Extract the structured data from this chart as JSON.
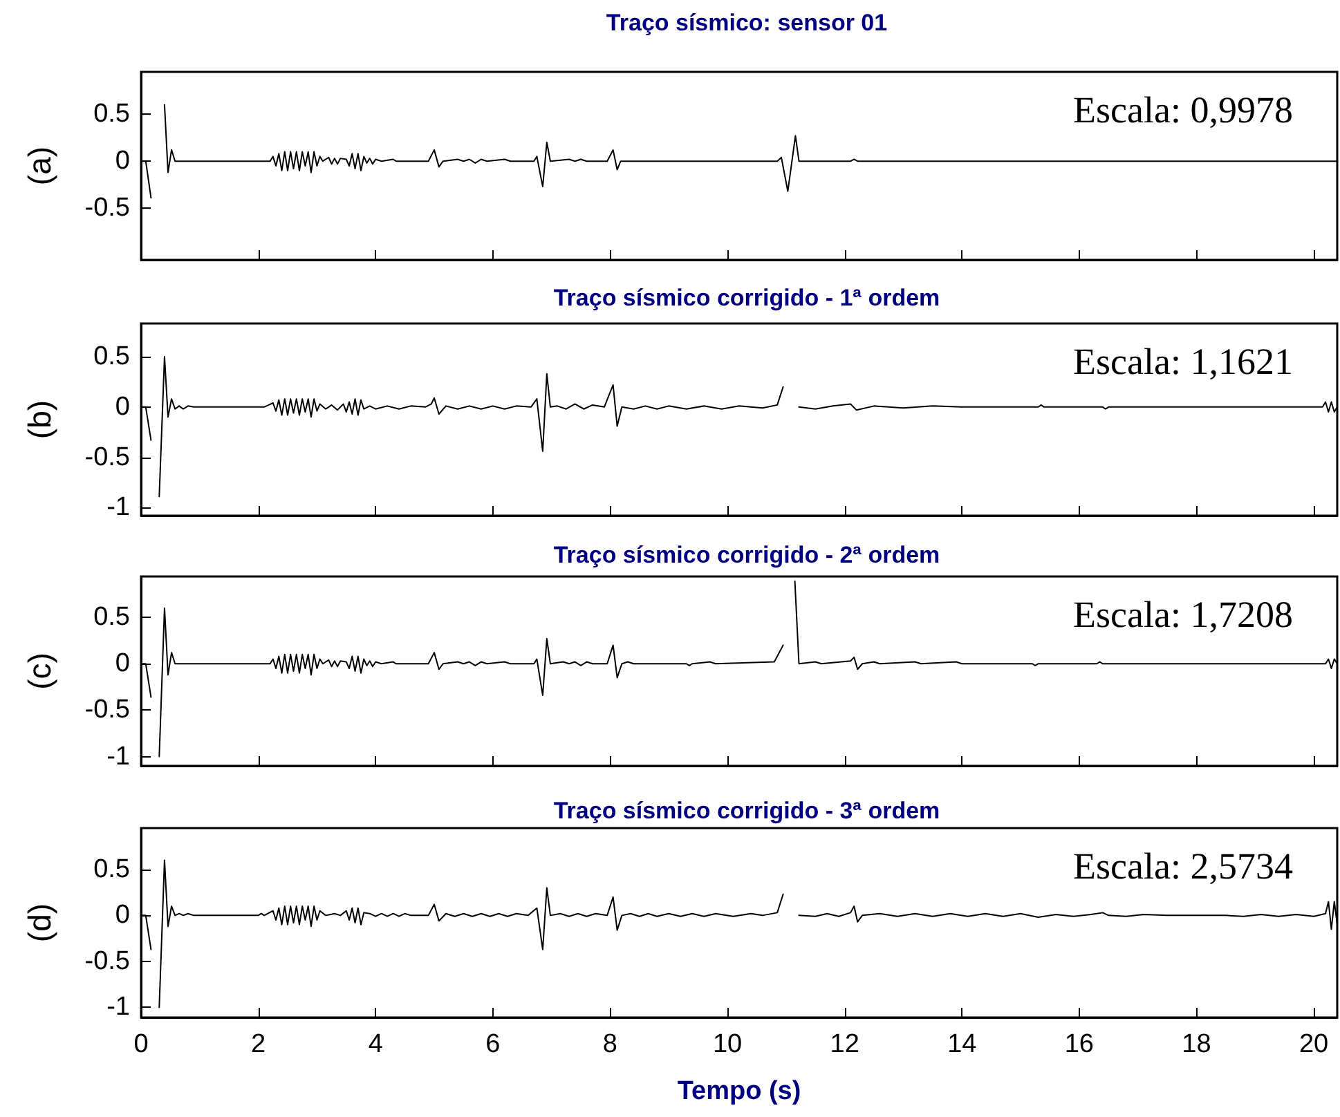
{
  "chart_data": [
    {
      "type": "line",
      "title": "Traço sísmico: sensor 01",
      "ylabel": "(a)",
      "annotations": [
        "Escala: 0,9978"
      ],
      "marker": "none",
      "tick_labels": "y",
      "xlim": [
        0,
        20.4
      ],
      "xticks": [
        0,
        2,
        4,
        6,
        8,
        10,
        12,
        14,
        16,
        18,
        20
      ],
      "ylim": [
        -1.05,
        0.95
      ],
      "yticks": [
        -0.5,
        0,
        0.5
      ],
      "x": [
        0,
        0.08,
        0.17,
        0.25,
        0.31,
        0.4,
        0.46,
        0.52,
        0.58,
        2.2,
        2.25,
        2.3,
        2.35,
        2.4,
        2.45,
        2.5,
        2.55,
        2.6,
        2.65,
        2.7,
        2.75,
        2.8,
        2.85,
        2.9,
        2.95,
        3.0,
        3.05,
        3.1,
        3.2,
        3.25,
        3.3,
        3.35,
        3.4,
        3.5,
        3.55,
        3.6,
        3.65,
        3.7,
        3.75,
        3.8,
        3.85,
        3.9,
        3.95,
        4.0,
        4.1,
        4.3,
        4.35,
        4.9,
        5.0,
        5.08,
        5.15,
        5.4,
        5.5,
        5.6,
        5.7,
        5.8,
        5.9,
        6.2,
        6.3,
        6.7,
        6.75,
        6.85,
        6.92,
        6.98,
        7.3,
        7.4,
        7.5,
        7.6,
        7.95,
        8.05,
        8.12,
        8.18,
        10.85,
        10.92,
        11.03,
        11.16,
        11.22,
        12.1,
        12.16,
        12.22,
        20.4
      ],
      "series": [
        {
          "color": "#000000",
          "values": [
            0,
            0,
            -0.39,
            null,
            null,
            0.6,
            -0.12,
            0.12,
            0,
            0,
            0.05,
            -0.05,
            0.08,
            -0.1,
            0.1,
            -0.1,
            0.1,
            -0.08,
            0.1,
            -0.1,
            0.1,
            -0.05,
            0.1,
            -0.12,
            0.1,
            -0.05,
            0.05,
            0,
            0.04,
            -0.03,
            0.03,
            -0.03,
            0.03,
            0.02,
            -0.05,
            0.08,
            -0.08,
            0.08,
            -0.1,
            0.05,
            -0.02,
            0.03,
            -0.03,
            0.02,
            0,
            0.02,
            0,
            0,
            0.12,
            -0.06,
            0,
            0.02,
            0,
            0.02,
            -0.02,
            0.02,
            0,
            0.02,
            0,
            0,
            0.05,
            -0.27,
            0.2,
            0,
            0.02,
            0,
            0.02,
            0,
            0,
            0.12,
            -0.09,
            0,
            0,
            0.04,
            -0.32,
            0.27,
            0,
            0,
            0.02,
            0,
            0
          ]
        }
      ]
    },
    {
      "type": "line",
      "title": "Traço sísmico corrigido - 1ª ordem",
      "ylabel": "(b)",
      "annotations": [
        "Escala: 1,1621"
      ],
      "marker": "none",
      "tick_labels": "y",
      "xlim": [
        0,
        20.4
      ],
      "xticks": [
        0,
        2,
        4,
        6,
        8,
        10,
        12,
        14,
        16,
        18,
        20
      ],
      "ylim": [
        -1.08,
        0.83
      ],
      "yticks": [
        -1,
        -0.5,
        0,
        0.5
      ],
      "x": [
        0,
        0.08,
        0.17,
        0.25,
        0.31,
        0.4,
        0.46,
        0.52,
        0.58,
        0.65,
        0.72,
        0.8,
        0.9,
        2.1,
        2.25,
        2.3,
        2.35,
        2.4,
        2.45,
        2.5,
        2.55,
        2.6,
        2.65,
        2.7,
        2.75,
        2.8,
        2.85,
        2.9,
        2.95,
        3.0,
        3.05,
        3.15,
        3.25,
        3.35,
        3.45,
        3.5,
        3.55,
        3.6,
        3.65,
        3.7,
        3.75,
        3.8,
        3.9,
        4.0,
        4.2,
        4.4,
        4.6,
        4.85,
        4.95,
        5.0,
        5.08,
        5.2,
        5.4,
        5.6,
        5.8,
        6.0,
        6.2,
        6.4,
        6.65,
        6.75,
        6.85,
        6.92,
        6.98,
        7.1,
        7.25,
        7.4,
        7.55,
        7.7,
        7.9,
        8.05,
        8.12,
        8.2,
        8.4,
        8.6,
        8.8,
        9.0,
        9.3,
        9.6,
        9.9,
        10.2,
        10.6,
        10.85,
        10.95,
        11.03,
        11.15,
        11.22,
        11.5,
        11.8,
        12.1,
        12.2,
        12.5,
        13.0,
        13.5,
        14.0,
        15.3,
        15.35,
        15.4,
        16.4,
        16.45,
        16.5,
        20.15,
        20.2,
        20.25,
        20.3,
        20.35,
        20.4
      ],
      "series": [
        {
          "color": "#000000",
          "values": [
            0,
            0,
            -0.33,
            null,
            -0.89,
            0.5,
            -0.1,
            0.08,
            -0.02,
            0.01,
            -0.02,
            0.01,
            0,
            0,
            0.04,
            -0.04,
            0.07,
            -0.08,
            0.08,
            -0.08,
            0.08,
            -0.06,
            0.08,
            -0.08,
            0.08,
            -0.05,
            0.08,
            -0.1,
            0.08,
            -0.04,
            0.03,
            -0.02,
            0.02,
            -0.03,
            0.03,
            -0.05,
            0.05,
            -0.07,
            0.08,
            -0.08,
            0.07,
            -0.02,
            0.01,
            -0.02,
            0.01,
            -0.02,
            0.01,
            0,
            0.03,
            0.09,
            -0.07,
            0.01,
            -0.02,
            0.01,
            -0.02,
            0.01,
            -0.02,
            0.01,
            0,
            0.08,
            -0.44,
            0.33,
            0,
            0.01,
            -0.02,
            0.03,
            -0.02,
            0.02,
            0,
            0.22,
            -0.19,
            0,
            -0.02,
            0.01,
            -0.02,
            0.01,
            -0.02,
            0.01,
            -0.02,
            0.01,
            -0.01,
            0.02,
            0.2,
            null,
            null,
            0,
            -0.02,
            0.01,
            0.03,
            -0.03,
            0.01,
            -0.01,
            0.01,
            0,
            0,
            0.02,
            0,
            0,
            -0.02,
            0,
            0,
            0.05,
            -0.05,
            0.05,
            -0.05,
            0
          ]
        }
      ]
    },
    {
      "type": "line",
      "title": "Traço sísmico corrigido - 2ª ordem",
      "ylabel": "(c)",
      "annotations": [
        "Escala: 1,7208"
      ],
      "marker": "none",
      "tick_labels": "y",
      "xlim": [
        0,
        20.4
      ],
      "xticks": [
        0,
        2,
        4,
        6,
        8,
        10,
        12,
        14,
        16,
        18,
        20
      ],
      "ylim": [
        -1.1,
        0.94
      ],
      "yticks": [
        -1,
        -0.5,
        0,
        0.5
      ],
      "x": [
        0,
        0.08,
        0.17,
        0.25,
        0.31,
        0.4,
        0.46,
        0.52,
        0.58,
        2.2,
        2.25,
        2.3,
        2.35,
        2.4,
        2.45,
        2.5,
        2.55,
        2.6,
        2.65,
        2.7,
        2.75,
        2.8,
        2.85,
        2.9,
        2.95,
        3.0,
        3.05,
        3.1,
        3.2,
        3.25,
        3.3,
        3.35,
        3.4,
        3.5,
        3.55,
        3.6,
        3.65,
        3.7,
        3.75,
        3.8,
        3.85,
        3.9,
        3.95,
        4.0,
        4.1,
        4.3,
        4.35,
        4.9,
        5.0,
        5.08,
        5.15,
        5.4,
        5.5,
        5.6,
        5.7,
        5.8,
        5.9,
        6.2,
        6.3,
        6.7,
        6.75,
        6.85,
        6.92,
        6.98,
        7.2,
        7.3,
        7.4,
        7.5,
        7.6,
        7.7,
        7.95,
        8.05,
        8.12,
        8.2,
        8.3,
        8.4,
        9.3,
        9.35,
        9.4,
        9.7,
        9.8,
        10.8,
        10.95,
        11.03,
        11.15,
        11.22,
        11.5,
        11.6,
        12.1,
        12.16,
        12.22,
        12.3,
        12.5,
        12.6,
        13.2,
        13.3,
        13.9,
        14.0,
        15.2,
        15.25,
        15.3,
        16.3,
        16.35,
        16.4,
        20.2,
        20.25,
        20.3,
        20.35,
        20.4
      ],
      "series": [
        {
          "color": "#000000",
          "values": [
            0,
            0,
            -0.36,
            null,
            -1.0,
            0.6,
            -0.12,
            0.12,
            0,
            0,
            0.05,
            -0.05,
            0.08,
            -0.1,
            0.1,
            -0.1,
            0.1,
            -0.08,
            0.1,
            -0.1,
            0.1,
            -0.05,
            0.1,
            -0.12,
            0.1,
            -0.05,
            0.05,
            0,
            0.04,
            -0.03,
            0.03,
            -0.03,
            0.03,
            0.02,
            -0.05,
            0.08,
            -0.08,
            0.08,
            -0.1,
            0.05,
            -0.02,
            0.03,
            -0.03,
            0.02,
            0,
            0.02,
            0,
            0,
            0.12,
            -0.06,
            0,
            0.02,
            0,
            0.02,
            -0.02,
            0.02,
            0,
            0.02,
            0,
            0,
            0.05,
            -0.34,
            0.27,
            0,
            0.02,
            0,
            0.02,
            -0.02,
            0.02,
            0,
            0,
            0.2,
            -0.15,
            0,
            0.02,
            0,
            0,
            -0.02,
            0,
            0.02,
            0,
            0.02,
            0.2,
            null,
            0.89,
            0,
            0.02,
            0,
            0.03,
            0.07,
            -0.06,
            0,
            0.02,
            0,
            0.02,
            0,
            0.02,
            0,
            0,
            -0.02,
            0,
            0,
            0.02,
            0,
            0,
            0.05,
            -0.05,
            0.05,
            0
          ]
        }
      ]
    },
    {
      "type": "line",
      "title": "Traço sísmico corrigido - 3ª ordem",
      "ylabel": "(d)",
      "xlabel": "Tempo (s)",
      "annotations": [
        "Escala: 2,5734"
      ],
      "marker": "none",
      "xlim": [
        0,
        20.4
      ],
      "xticks": [
        0,
        2,
        4,
        6,
        8,
        10,
        12,
        14,
        16,
        18,
        20
      ],
      "ylim": [
        -1.11,
        0.95
      ],
      "yticks": [
        -1,
        -0.5,
        0,
        0.5
      ],
      "x": [
        0,
        0.08,
        0.17,
        0.25,
        0.31,
        0.4,
        0.46,
        0.52,
        0.58,
        0.65,
        0.72,
        0.8,
        0.9,
        2.0,
        2.05,
        2.1,
        2.25,
        2.3,
        2.35,
        2.4,
        2.45,
        2.5,
        2.55,
        2.6,
        2.65,
        2.7,
        2.75,
        2.8,
        2.85,
        2.9,
        2.95,
        3.0,
        3.05,
        3.15,
        3.3,
        3.4,
        3.5,
        3.55,
        3.6,
        3.65,
        3.7,
        3.75,
        3.8,
        3.9,
        4.0,
        4.1,
        4.2,
        4.3,
        4.4,
        4.5,
        4.6,
        4.9,
        5.0,
        5.08,
        5.2,
        5.35,
        5.5,
        5.65,
        5.8,
        5.95,
        6.1,
        6.25,
        6.4,
        6.6,
        6.75,
        6.85,
        6.92,
        6.98,
        7.15,
        7.3,
        7.45,
        7.6,
        7.75,
        7.95,
        8.05,
        8.12,
        8.2,
        8.35,
        8.5,
        8.65,
        8.8,
        9.0,
        9.2,
        9.4,
        9.6,
        9.8,
        10.1,
        10.4,
        10.6,
        10.85,
        10.95,
        11.03,
        11.15,
        11.22,
        11.5,
        11.7,
        11.9,
        12.1,
        12.16,
        12.22,
        12.3,
        12.6,
        12.9,
        13.2,
        13.5,
        13.8,
        14.1,
        14.4,
        14.7,
        15.0,
        15.3,
        15.6,
        15.9,
        16.2,
        16.4,
        16.5,
        16.8,
        17.1,
        17.5,
        18.5,
        18.8,
        19.1,
        19.4,
        19.7,
        20.0,
        20.2,
        20.25,
        20.3,
        20.35,
        20.4
      ],
      "series": [
        {
          "color": "#000000",
          "values": [
            0,
            0,
            -0.37,
            null,
            -1.0,
            0.6,
            -0.12,
            0.1,
            0,
            0.02,
            0,
            0.02,
            0,
            0,
            0.02,
            0,
            0.05,
            -0.05,
            0.08,
            -0.1,
            0.1,
            -0.1,
            0.1,
            -0.08,
            0.1,
            -0.1,
            0.1,
            -0.05,
            0.1,
            -0.12,
            0.1,
            -0.05,
            0.05,
            0,
            0.02,
            0,
            0.05,
            -0.05,
            0.08,
            -0.08,
            0.08,
            -0.1,
            0.03,
            0.02,
            -0.01,
            0.02,
            -0.01,
            0.02,
            -0.01,
            0.02,
            0,
            0,
            0.12,
            -0.06,
            0.02,
            -0.01,
            0.02,
            -0.01,
            0.02,
            -0.01,
            0.02,
            -0.01,
            0.02,
            0,
            0.08,
            -0.37,
            0.3,
            0,
            0.02,
            -0.01,
            0.02,
            -0.01,
            0.02,
            0,
            0.2,
            -0.16,
            0,
            0.02,
            -0.01,
            0.02,
            -0.01,
            0.02,
            -0.01,
            0.02,
            -0.01,
            0.02,
            -0.01,
            0.02,
            0,
            0.03,
            0.23,
            null,
            null,
            0,
            -0.01,
            0.02,
            -0.01,
            0.03,
            0.1,
            -0.07,
            0,
            0.02,
            -0.01,
            0.02,
            -0.01,
            0.02,
            -0.01,
            0.02,
            -0.01,
            0.02,
            -0.02,
            0.01,
            -0.01,
            0.01,
            0.03,
            0,
            -0.01,
            0.01,
            0,
            0,
            -0.01,
            0.01,
            -0.01,
            0.01,
            -0.01,
            0.02,
            0.15,
            -0.15,
            0.15,
            -0.1
          ]
        }
      ]
    }
  ]
}
